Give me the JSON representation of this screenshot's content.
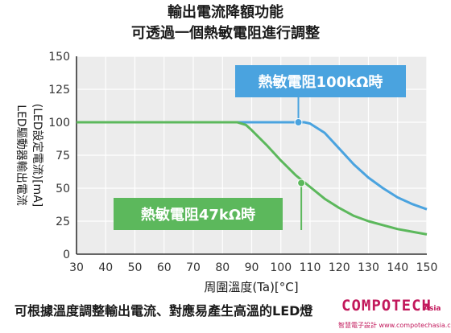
{
  "header": {
    "line1": "輸出電流降額功能",
    "line2": "可透過一個熱敏電阻進行調整"
  },
  "caption": "可根據溫度調整輸出電流、對應易產生高溫的LED燈",
  "watermark": {
    "logo": "COMPOTECH",
    "region": "Asia",
    "sub": "智慧電子設計 www.compotechasia.com"
  },
  "chart_data": {
    "type": "line",
    "xlabel": "周圍溫度(Ta)[°C]",
    "ylabel_main": "LED驅動器輸出電流",
    "ylabel_sub": "(LED設定電流)[mA]",
    "xlim": [
      30,
      150
    ],
    "ylim": [
      0,
      150
    ],
    "xticks": [
      30,
      40,
      50,
      60,
      70,
      80,
      90,
      100,
      110,
      120,
      130,
      140,
      150
    ],
    "yticks": [
      0,
      25,
      50,
      75,
      100,
      125,
      150
    ],
    "grid": true,
    "series": [
      {
        "name": "熱敏電阻100kΩ時",
        "color": "#4aa3df",
        "x": [
          30,
          105,
          108,
          110,
          115,
          120,
          125,
          130,
          135,
          140,
          145,
          150
        ],
        "y": [
          100,
          100,
          100,
          99,
          92,
          80,
          68,
          58,
          50,
          43,
          38,
          34
        ]
      },
      {
        "name": "熱敏電阻47kΩ時",
        "color": "#5cb85c",
        "x": [
          30,
          85,
          88,
          90,
          95,
          100,
          105,
          110,
          115,
          120,
          125,
          130,
          135,
          140,
          145,
          150
        ],
        "y": [
          100,
          100,
          98,
          94,
          83,
          71,
          60,
          51,
          42,
          35,
          29,
          25,
          22,
          19,
          17,
          15
        ]
      }
    ],
    "markers": [
      {
        "series": 0,
        "x": 106,
        "y": 100
      },
      {
        "series": 1,
        "x": 107,
        "y": 54
      }
    ]
  }
}
